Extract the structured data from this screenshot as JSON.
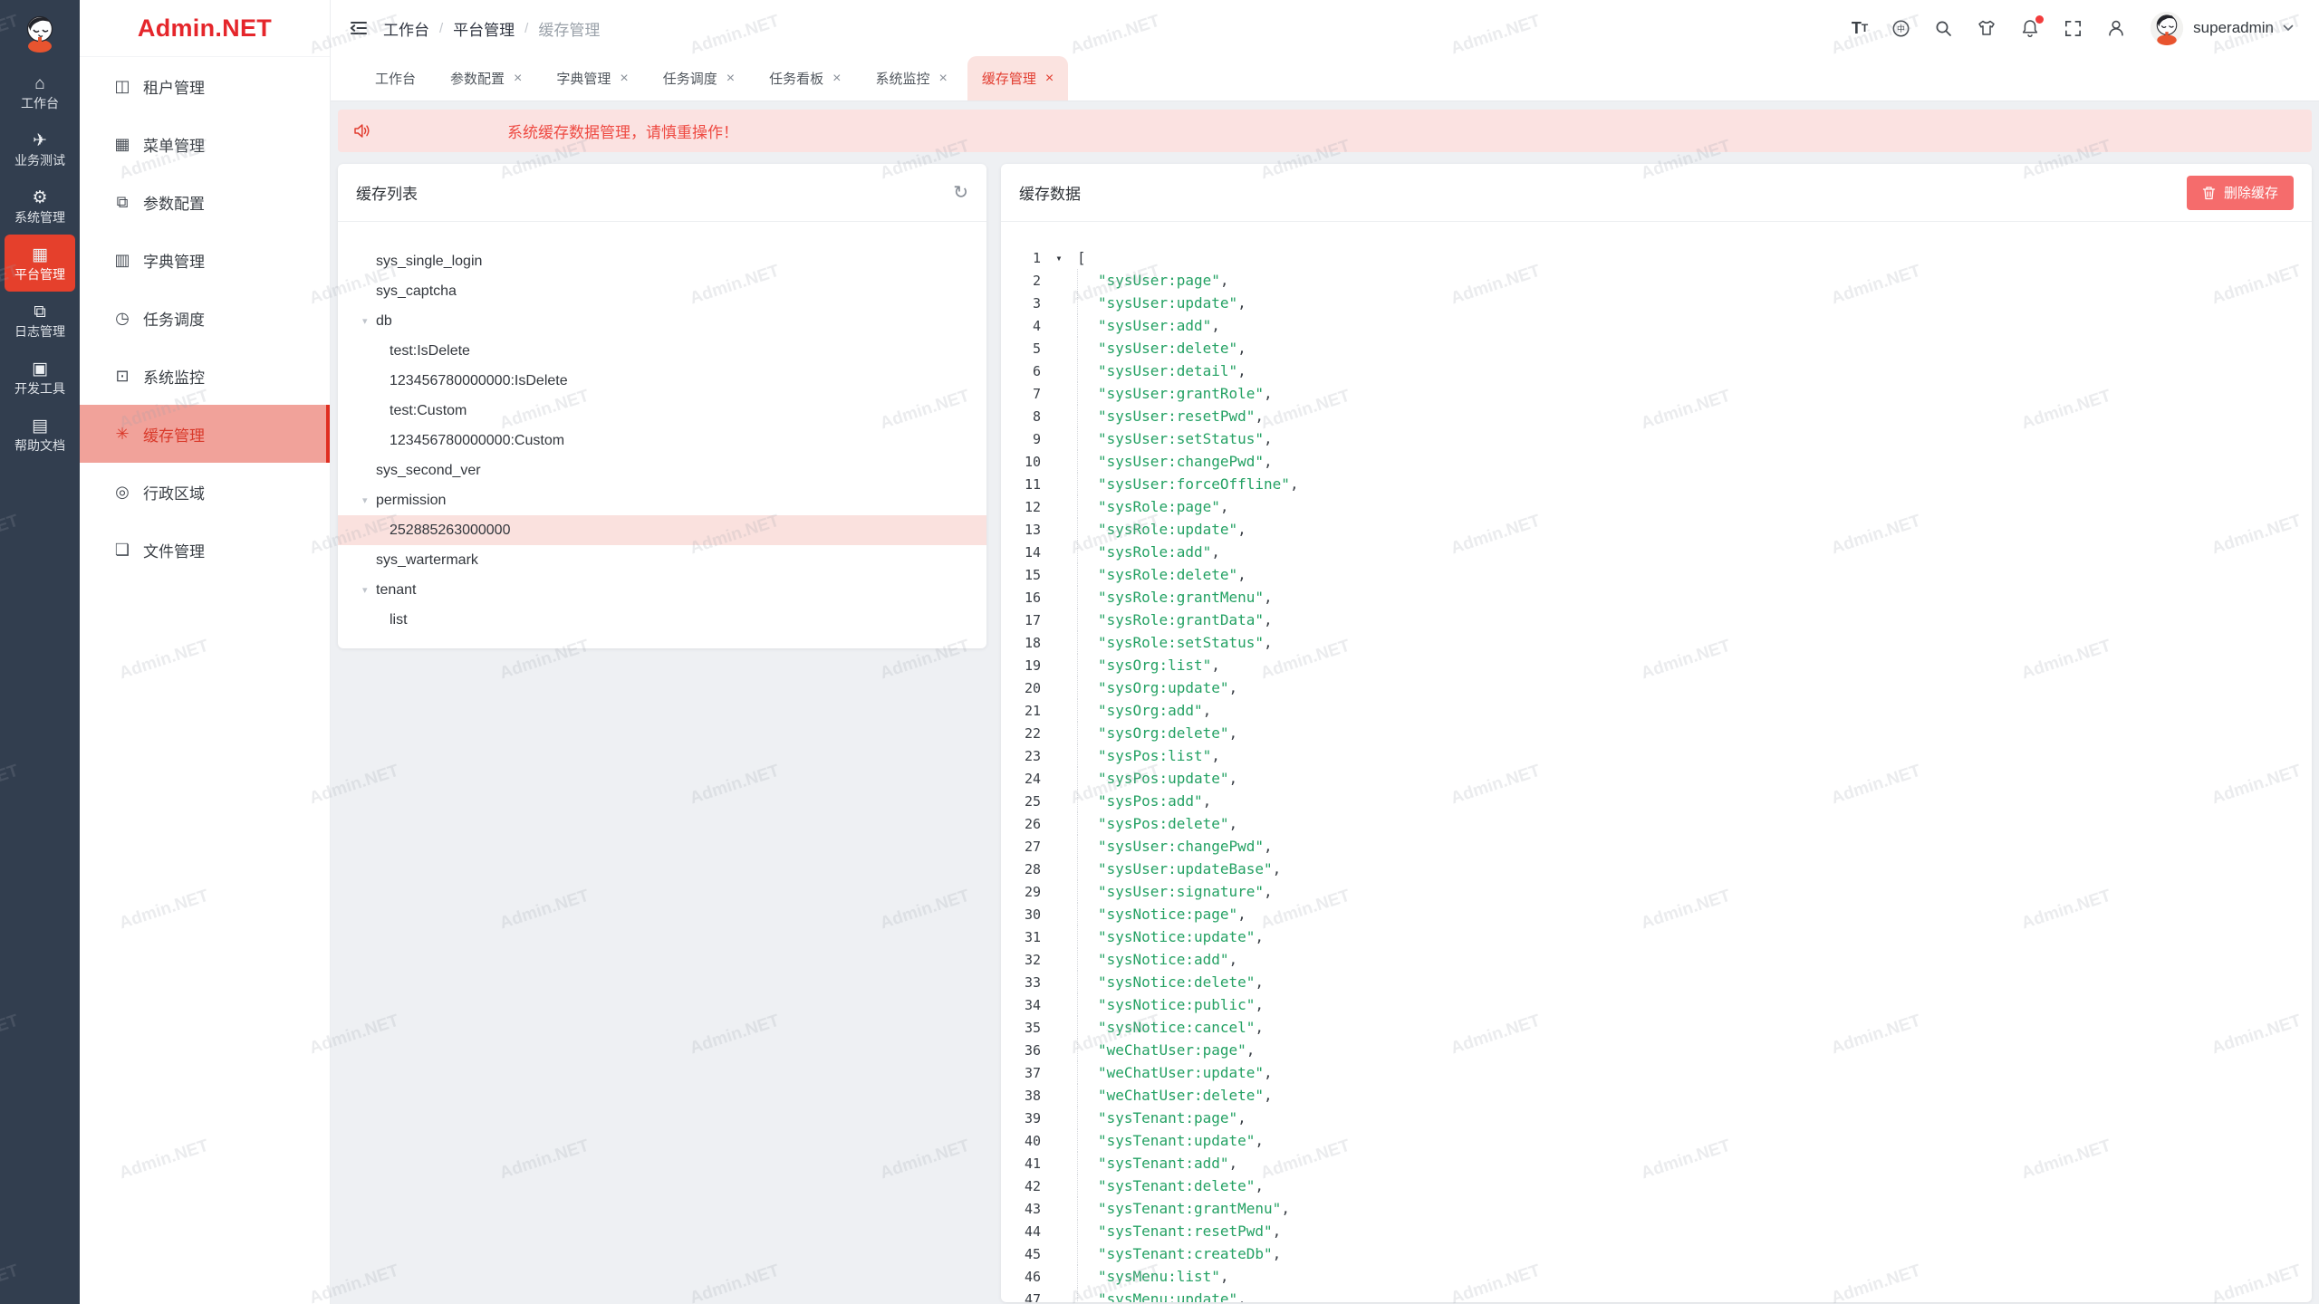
{
  "watermark": {
    "text": "Admin.NET"
  },
  "rail": {
    "items": [
      {
        "label": "工作台",
        "icon": "home-icon",
        "active": false
      },
      {
        "label": "业务测试",
        "icon": "paper-plane-icon",
        "active": false
      },
      {
        "label": "系统管理",
        "icon": "gear-icon",
        "active": false
      },
      {
        "label": "平台管理",
        "icon": "platform-grid-icon",
        "active": true
      },
      {
        "label": "日志管理",
        "icon": "log-copy-icon",
        "active": false
      },
      {
        "label": "开发工具",
        "icon": "chip-icon",
        "active": false
      },
      {
        "label": "帮助文档",
        "icon": "help-book-icon",
        "active": false
      }
    ]
  },
  "sidebar": {
    "logo_text": "Admin.NET",
    "items": [
      {
        "label": "租户管理",
        "icon": "tenant-icon",
        "active": false
      },
      {
        "label": "菜单管理",
        "icon": "menu-grid-icon",
        "active": false
      },
      {
        "label": "参数配置",
        "icon": "config-icon",
        "active": false
      },
      {
        "label": "字典管理",
        "icon": "dict-icon",
        "active": false
      },
      {
        "label": "任务调度",
        "icon": "schedule-clock-icon",
        "active": false
      },
      {
        "label": "系统监控",
        "icon": "monitor-icon",
        "active": false
      },
      {
        "label": "缓存管理",
        "icon": "cache-loading-icon",
        "active": true
      },
      {
        "label": "行政区域",
        "icon": "region-pin-icon",
        "active": false
      },
      {
        "label": "文件管理",
        "icon": "file-icon",
        "active": false
      }
    ]
  },
  "header": {
    "breadcrumb": [
      "工作台",
      "平台管理",
      "缓存管理"
    ],
    "breadcrumb_separator": "/",
    "username": "superadmin",
    "action_icons": [
      "font-size-icon",
      "language-icon",
      "search-icon",
      "theme-icon",
      "notification-bell-icon",
      "fullscreen-icon",
      "user-icon"
    ]
  },
  "tabs": [
    {
      "label": "工作台",
      "closable": false,
      "active": false
    },
    {
      "label": "参数配置",
      "closable": true,
      "active": false
    },
    {
      "label": "字典管理",
      "closable": true,
      "active": false
    },
    {
      "label": "任务调度",
      "closable": true,
      "active": false
    },
    {
      "label": "任务看板",
      "closable": true,
      "active": false
    },
    {
      "label": "系统监控",
      "closable": true,
      "active": false
    },
    {
      "label": "缓存管理",
      "closable": true,
      "active": true
    }
  ],
  "banner": {
    "text": "系统缓存数据管理，请慎重操作！"
  },
  "cache_list": {
    "title": "缓存列表",
    "tree": [
      {
        "label": "sys_single_login",
        "depth": 0
      },
      {
        "label": "sys_captcha",
        "depth": 0
      },
      {
        "label": "db",
        "depth": 0,
        "expanded": true
      },
      {
        "label": "test:IsDelete",
        "depth": 1
      },
      {
        "label": "123456780000000:IsDelete",
        "depth": 1
      },
      {
        "label": "test:Custom",
        "depth": 1
      },
      {
        "label": "123456780000000:Custom",
        "depth": 1
      },
      {
        "label": "sys_second_ver",
        "depth": 0
      },
      {
        "label": "permission",
        "depth": 0,
        "expanded": true
      },
      {
        "label": "252885263000000",
        "depth": 1,
        "active": true
      },
      {
        "label": "sys_wartermark",
        "depth": 0
      },
      {
        "label": "tenant",
        "depth": 0,
        "expanded": true
      },
      {
        "label": "list",
        "depth": 1
      }
    ]
  },
  "cache_data": {
    "title": "缓存数据",
    "delete_label": "删除缓存",
    "syntax": {
      "quote": "\"",
      "comma": ","
    },
    "line1": {
      "number": "1",
      "bracket": "["
    },
    "lines": [
      {
        "n": "2",
        "name": "sysUser:page"
      },
      {
        "n": "3",
        "name": "sysUser:update"
      },
      {
        "n": "4",
        "name": "sysUser:add"
      },
      {
        "n": "5",
        "name": "sysUser:delete"
      },
      {
        "n": "6",
        "name": "sysUser:detail"
      },
      {
        "n": "7",
        "name": "sysUser:grantRole"
      },
      {
        "n": "8",
        "name": "sysUser:resetPwd"
      },
      {
        "n": "9",
        "name": "sysUser:setStatus"
      },
      {
        "n": "10",
        "name": "sysUser:changePwd"
      },
      {
        "n": "11",
        "name": "sysUser:forceOffline"
      },
      {
        "n": "12",
        "name": "sysRole:page"
      },
      {
        "n": "13",
        "name": "sysRole:update"
      },
      {
        "n": "14",
        "name": "sysRole:add"
      },
      {
        "n": "15",
        "name": "sysRole:delete"
      },
      {
        "n": "16",
        "name": "sysRole:grantMenu"
      },
      {
        "n": "17",
        "name": "sysRole:grantData"
      },
      {
        "n": "18",
        "name": "sysRole:setStatus"
      },
      {
        "n": "19",
        "name": "sysOrg:list"
      },
      {
        "n": "20",
        "name": "sysOrg:update"
      },
      {
        "n": "21",
        "name": "sysOrg:add"
      },
      {
        "n": "22",
        "name": "sysOrg:delete"
      },
      {
        "n": "23",
        "name": "sysPos:list"
      },
      {
        "n": "24",
        "name": "sysPos:update"
      },
      {
        "n": "25",
        "name": "sysPos:add"
      },
      {
        "n": "26",
        "name": "sysPos:delete"
      },
      {
        "n": "27",
        "name": "sysUser:changePwd"
      },
      {
        "n": "28",
        "name": "sysUser:updateBase"
      },
      {
        "n": "29",
        "name": "sysUser:signature"
      },
      {
        "n": "30",
        "name": "sysNotice:page"
      },
      {
        "n": "31",
        "name": "sysNotice:update"
      },
      {
        "n": "32",
        "name": "sysNotice:add"
      },
      {
        "n": "33",
        "name": "sysNotice:delete"
      },
      {
        "n": "34",
        "name": "sysNotice:public"
      },
      {
        "n": "35",
        "name": "sysNotice:cancel"
      },
      {
        "n": "36",
        "name": "weChatUser:page"
      },
      {
        "n": "37",
        "name": "weChatUser:update"
      },
      {
        "n": "38",
        "name": "weChatUser:delete"
      },
      {
        "n": "39",
        "name": "sysTenant:page"
      },
      {
        "n": "40",
        "name": "sysTenant:update"
      },
      {
        "n": "41",
        "name": "sysTenant:add"
      },
      {
        "n": "42",
        "name": "sysTenant:delete"
      },
      {
        "n": "43",
        "name": "sysTenant:grantMenu"
      },
      {
        "n": "44",
        "name": "sysTenant:resetPwd"
      },
      {
        "n": "45",
        "name": "sysTenant:createDb"
      },
      {
        "n": "46",
        "name": "sysMenu:list"
      },
      {
        "n": "47",
        "name": "sysMenu:update"
      }
    ]
  },
  "colors": {
    "accent_red": "#e5402c",
    "active_menu_bg": "#f1a29a",
    "banner_bg": "#fbe2e1",
    "banner_text": "#ee4a42",
    "code_string_green": "#23a163",
    "danger_button": "#f56c6c",
    "rail_bg": "#323e4f"
  }
}
